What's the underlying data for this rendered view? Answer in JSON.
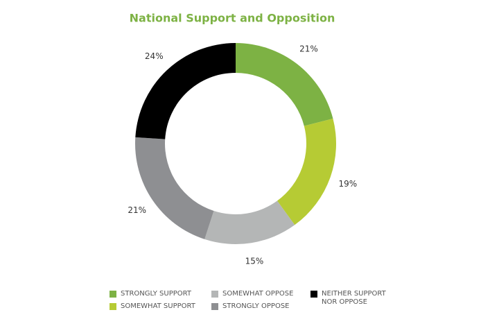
{
  "chart_data": {
    "type": "donut",
    "title": "National Support and Opposition",
    "categories": [
      "STRONGLY SUPPORT",
      "SOMEWHAT SUPPORT",
      "SOMEWHAT OPPOSE",
      "STRONGLY OPPOSE",
      "NEITHER SUPPORT NOR OPPOSE"
    ],
    "values": [
      21,
      19,
      15,
      21,
      24
    ],
    "value_labels": [
      "21%",
      "19%",
      "15%",
      "21%",
      "24%"
    ],
    "colors": [
      "#7db244",
      "#b6cb34",
      "#b4b6b6",
      "#8e8f92",
      "#000000"
    ]
  }
}
